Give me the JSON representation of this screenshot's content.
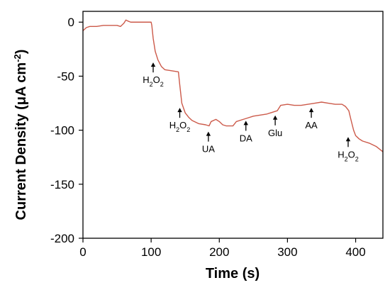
{
  "chart_data": {
    "type": "line",
    "xlabel": "Time (s)",
    "ylabel_parts": {
      "main": "Current Density (μA cm",
      "sup": "-2",
      "end": ")"
    },
    "xlim": [
      0,
      440
    ],
    "ylim": [
      -200,
      10
    ],
    "x_ticks": [
      0,
      100,
      200,
      300,
      400
    ],
    "y_ticks": [
      0,
      -50,
      -100,
      -150,
      -200
    ],
    "grid": false,
    "line_color": "#cc5a4a",
    "series": [
      {
        "points": [
          [
            0,
            -8
          ],
          [
            5,
            -5
          ],
          [
            10,
            -4
          ],
          [
            20,
            -4
          ],
          [
            30,
            -3
          ],
          [
            40,
            -3
          ],
          [
            50,
            -3
          ],
          [
            55,
            -4
          ],
          [
            60,
            -1
          ],
          [
            63,
            2
          ],
          [
            66,
            1
          ],
          [
            70,
            0
          ],
          [
            80,
            0
          ],
          [
            90,
            0
          ],
          [
            100,
            0
          ],
          [
            101,
            -3
          ],
          [
            103,
            -15
          ],
          [
            106,
            -27
          ],
          [
            110,
            -35
          ],
          [
            115,
            -41
          ],
          [
            120,
            -44
          ],
          [
            130,
            -45
          ],
          [
            140,
            -46
          ],
          [
            142,
            -58
          ],
          [
            145,
            -75
          ],
          [
            150,
            -84
          ],
          [
            155,
            -88
          ],
          [
            160,
            -91
          ],
          [
            170,
            -94
          ],
          [
            180,
            -95
          ],
          [
            185,
            -96
          ],
          [
            188,
            -92
          ],
          [
            195,
            -90
          ],
          [
            200,
            -92
          ],
          [
            205,
            -95
          ],
          [
            210,
            -96
          ],
          [
            220,
            -96
          ],
          [
            225,
            -92
          ],
          [
            235,
            -90
          ],
          [
            240,
            -89
          ],
          [
            250,
            -87
          ],
          [
            260,
            -86
          ],
          [
            270,
            -85
          ],
          [
            280,
            -83
          ],
          [
            285,
            -82
          ],
          [
            290,
            -77
          ],
          [
            300,
            -76
          ],
          [
            310,
            -77
          ],
          [
            320,
            -77
          ],
          [
            330,
            -76
          ],
          [
            340,
            -75
          ],
          [
            350,
            -74
          ],
          [
            360,
            -75
          ],
          [
            370,
            -76
          ],
          [
            380,
            -76
          ],
          [
            385,
            -78
          ],
          [
            390,
            -82
          ],
          [
            393,
            -90
          ],
          [
            397,
            -100
          ],
          [
            400,
            -105
          ],
          [
            405,
            -108
          ],
          [
            410,
            -110
          ],
          [
            420,
            -112
          ],
          [
            430,
            -115
          ],
          [
            440,
            -120
          ]
        ]
      }
    ],
    "annotations": [
      {
        "x": 103,
        "y": -38,
        "base": "H",
        "sub": "2",
        "tail": "O",
        "sub2": "2"
      },
      {
        "x": 142,
        "y": -80,
        "base": "H",
        "sub": "2",
        "tail": "O",
        "sub2": "2"
      },
      {
        "x": 184,
        "y": -102,
        "base": "UA"
      },
      {
        "x": 239,
        "y": -92,
        "base": "DA"
      },
      {
        "x": 282,
        "y": -87,
        "base": "Glu"
      },
      {
        "x": 335,
        "y": -80,
        "base": "AA"
      },
      {
        "x": 389,
        "y": -107,
        "base": "H",
        "sub": "2",
        "tail": "O",
        "sub2": "2"
      }
    ]
  }
}
